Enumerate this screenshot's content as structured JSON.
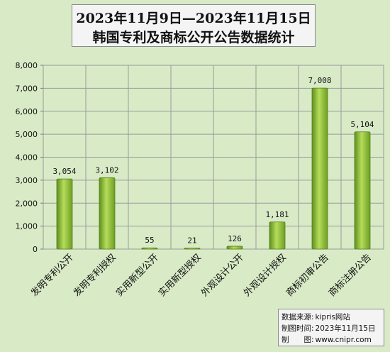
{
  "chart_data": {
    "type": "bar",
    "title_line1": "2023年11月9日—2023年11月15日",
    "title_line2": "韩国专利及商标公开公告数据统计",
    "categories": [
      "发明专利公开",
      "发明专利授权",
      "实用新型公开",
      "实用新型授权",
      "外观设计公开",
      "外观设计授权",
      "商标初审公告",
      "商标注册公告"
    ],
    "values": [
      3054,
      3102,
      55,
      21,
      126,
      1181,
      7008,
      5104
    ],
    "value_labels": [
      "3,054",
      "3,102",
      "55",
      "21",
      "126",
      "1,181",
      "7,008",
      "5,104"
    ],
    "ylim": [
      0,
      8000
    ],
    "yticks": [
      0,
      1000,
      2000,
      3000,
      4000,
      5000,
      6000,
      7000,
      8000
    ],
    "ytick_labels": [
      "0",
      "1,000",
      "2,000",
      "3,000",
      "4,000",
      "5,000",
      "6,000",
      "7,000",
      "8,000"
    ],
    "grid": true,
    "bar_color": "#8dbf3a",
    "plot_background": "#d8ebc6"
  },
  "source": {
    "label1": "数据来源:",
    "value1": "kipris网站",
    "label2": "制图时间:",
    "value2": "2023年11月15日",
    "label3": "制　　图:",
    "value3": "www.cnipr.com"
  }
}
